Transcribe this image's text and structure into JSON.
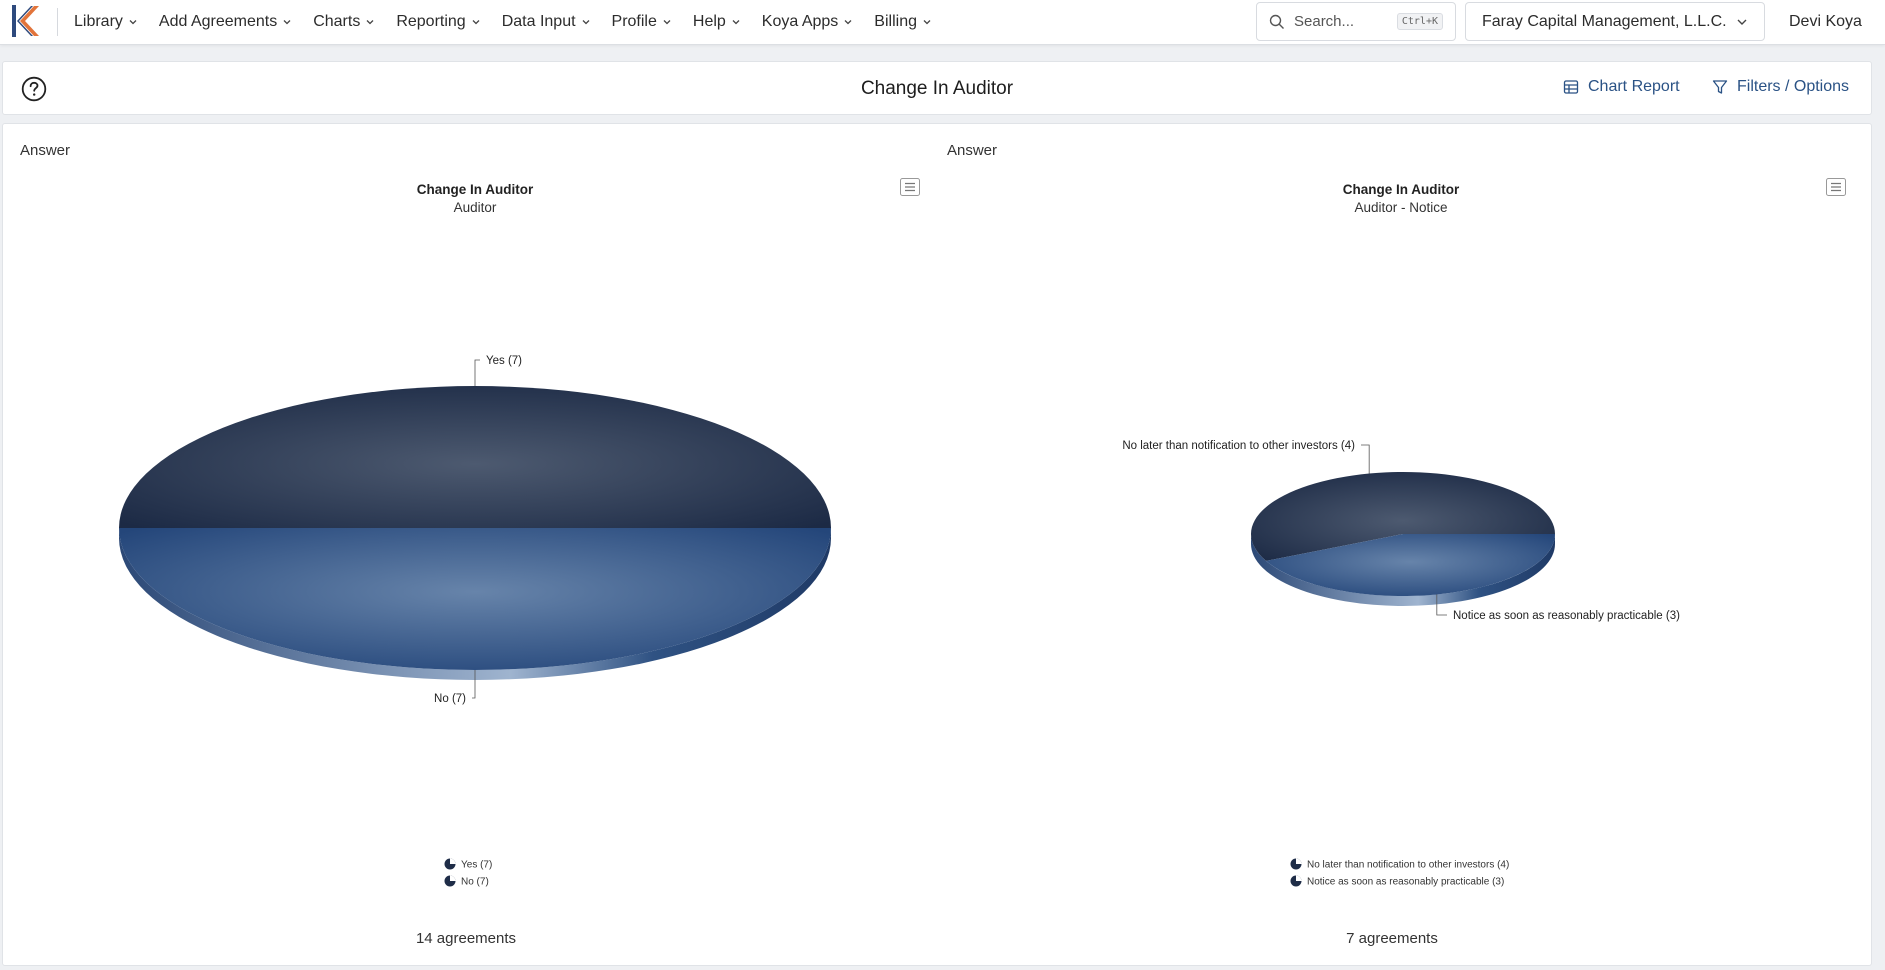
{
  "navbar": {
    "items": [
      {
        "label": "Library"
      },
      {
        "label": "Add Agreements"
      },
      {
        "label": "Charts"
      },
      {
        "label": "Reporting"
      },
      {
        "label": "Data Input"
      },
      {
        "label": "Profile"
      },
      {
        "label": "Help"
      },
      {
        "label": "Koya Apps"
      },
      {
        "label": "Billing"
      }
    ],
    "search": {
      "placeholder": "Search...",
      "shortcut": "Ctrl+K"
    },
    "organization": "Faray Capital Management, L.L.C.",
    "user": "Devi Koya"
  },
  "header": {
    "title": "Change In Auditor",
    "chart_report_label": "Chart Report",
    "filters_label": "Filters / Options"
  },
  "colors": {
    "accent": "#2a5285",
    "slice_dark": "#2f3e58",
    "slice_light": "#3f6592"
  },
  "panels": [
    {
      "label": "Answer",
      "agreements": "14 agreements"
    },
    {
      "label": "Answer",
      "agreements": "7 agreements"
    }
  ],
  "chart_data": [
    {
      "type": "pie",
      "title": "Change In Auditor",
      "subtitle": "Auditor",
      "categories": [
        "Yes",
        "No"
      ],
      "values": [
        7,
        7
      ],
      "labels": [
        "Yes (7)",
        "No (7)"
      ],
      "legend": {
        "placement": "bottom",
        "entries": [
          "Yes (7)",
          "No (7)"
        ]
      }
    },
    {
      "type": "pie",
      "title": "Change In Auditor",
      "subtitle": "Auditor - Notice",
      "categories": [
        "No later than notification to other investors",
        "Notice as soon as reasonably practicable"
      ],
      "values": [
        4,
        3
      ],
      "labels": [
        "No later than notification to other investors (4)",
        "Notice as soon as reasonably practicable (3)"
      ],
      "legend": {
        "placement": "bottom",
        "entries": [
          "No later than notification to other investors (4)",
          "Notice as soon as reasonably practicable (3)"
        ]
      }
    }
  ]
}
